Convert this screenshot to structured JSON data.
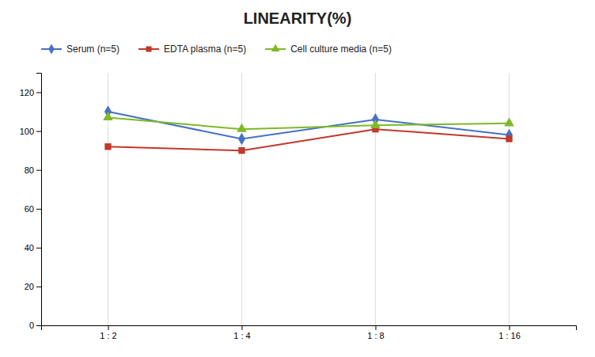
{
  "chart_data": {
    "type": "line",
    "title": "LINEARITY(%)",
    "categories": [
      "1 : 2",
      "1 : 4",
      "1 : 8",
      "1 : 16"
    ],
    "series": [
      {
        "name": "Serum (n=5)",
        "color": "#4472C4",
        "marker": "diamond",
        "line_style": "solid",
        "values": [
          110,
          96,
          106,
          98
        ]
      },
      {
        "name": "EDTA plasma (n=5)",
        "color": "#C0392B",
        "marker": "square",
        "line_style": "solid",
        "values": [
          92,
          90,
          101,
          96
        ]
      },
      {
        "name": "Cell culture media (n=5)",
        "color": "#7DB928",
        "marker": "triangle",
        "line_style": "solid",
        "values": [
          107,
          101,
          103,
          104
        ]
      }
    ],
    "ylim": [
      0,
      130
    ],
    "yticks": [
      0,
      20,
      40,
      60,
      80,
      100,
      120
    ],
    "grid": true,
    "legend": "top"
  }
}
